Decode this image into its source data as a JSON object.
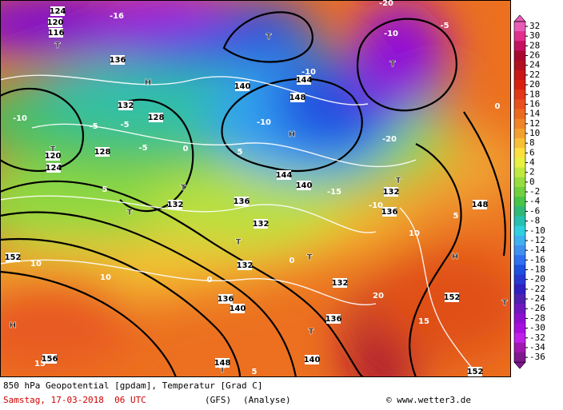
{
  "map": {
    "labels": [
      "T",
      "T",
      "T",
      "T",
      "T",
      "T",
      "T",
      "T",
      "T",
      "T",
      "T",
      "T",
      "H",
      "H",
      "H",
      "H",
      "-16",
      "-10",
      "-5",
      "-5",
      "-5",
      "0",
      "5",
      "-10",
      "-10",
      "-15",
      "-10",
      "-20",
      "-20",
      "-10",
      "-5",
      "0",
      "5",
      "10",
      "10",
      "0",
      "0",
      "10",
      "20",
      "15",
      "15",
      "5",
      "5",
      "124",
      "120",
      "116",
      "128",
      "132",
      "136",
      "140",
      "144",
      "148",
      "144",
      "140",
      "136",
      "132",
      "132",
      "136",
      "148",
      "152",
      "152",
      "156",
      "152",
      "140",
      "136",
      "136",
      "132",
      "140",
      "148",
      "132",
      "132",
      "128",
      "124",
      "120"
    ]
  },
  "legend": {
    "labels": [
      32,
      30,
      28,
      26,
      24,
      22,
      20,
      18,
      16,
      14,
      12,
      10,
      8,
      6,
      4,
      2,
      0,
      -2,
      -4,
      -6,
      -8,
      -10,
      -12,
      -14,
      -16,
      -18,
      -20,
      -22,
      -24,
      -26,
      -28,
      -30,
      -32,
      -34,
      -36
    ],
    "colors": [
      "#e85cb8",
      "#e0308c",
      "#c41060",
      "#a80830",
      "#b01020",
      "#c81818",
      "#d82010",
      "#e03818",
      "#e85020",
      "#ec6a20",
      "#f08428",
      "#f4a030",
      "#f8c038",
      "#fce040",
      "#e8f040",
      "#c0e840",
      "#98dc40",
      "#70d040",
      "#48c448",
      "#30b878",
      "#28c0b0",
      "#30d0e0",
      "#40b0f0",
      "#4090f0",
      "#3070f0",
      "#2050e0",
      "#2838d0",
      "#3020c0",
      "#5020b0",
      "#7018c0",
      "#9010d0",
      "#a810e0",
      "#c020e8",
      "#a018b0",
      "#801890"
    ]
  },
  "footer": {
    "title": "850 hPa Geopotential [gpdam], Temperatur [Grad C]",
    "date": "Samstag, 17-03-2018  06 UTC",
    "model": "(GFS)",
    "run": "(Analyse)",
    "credit": "© www.wetter3.de"
  }
}
